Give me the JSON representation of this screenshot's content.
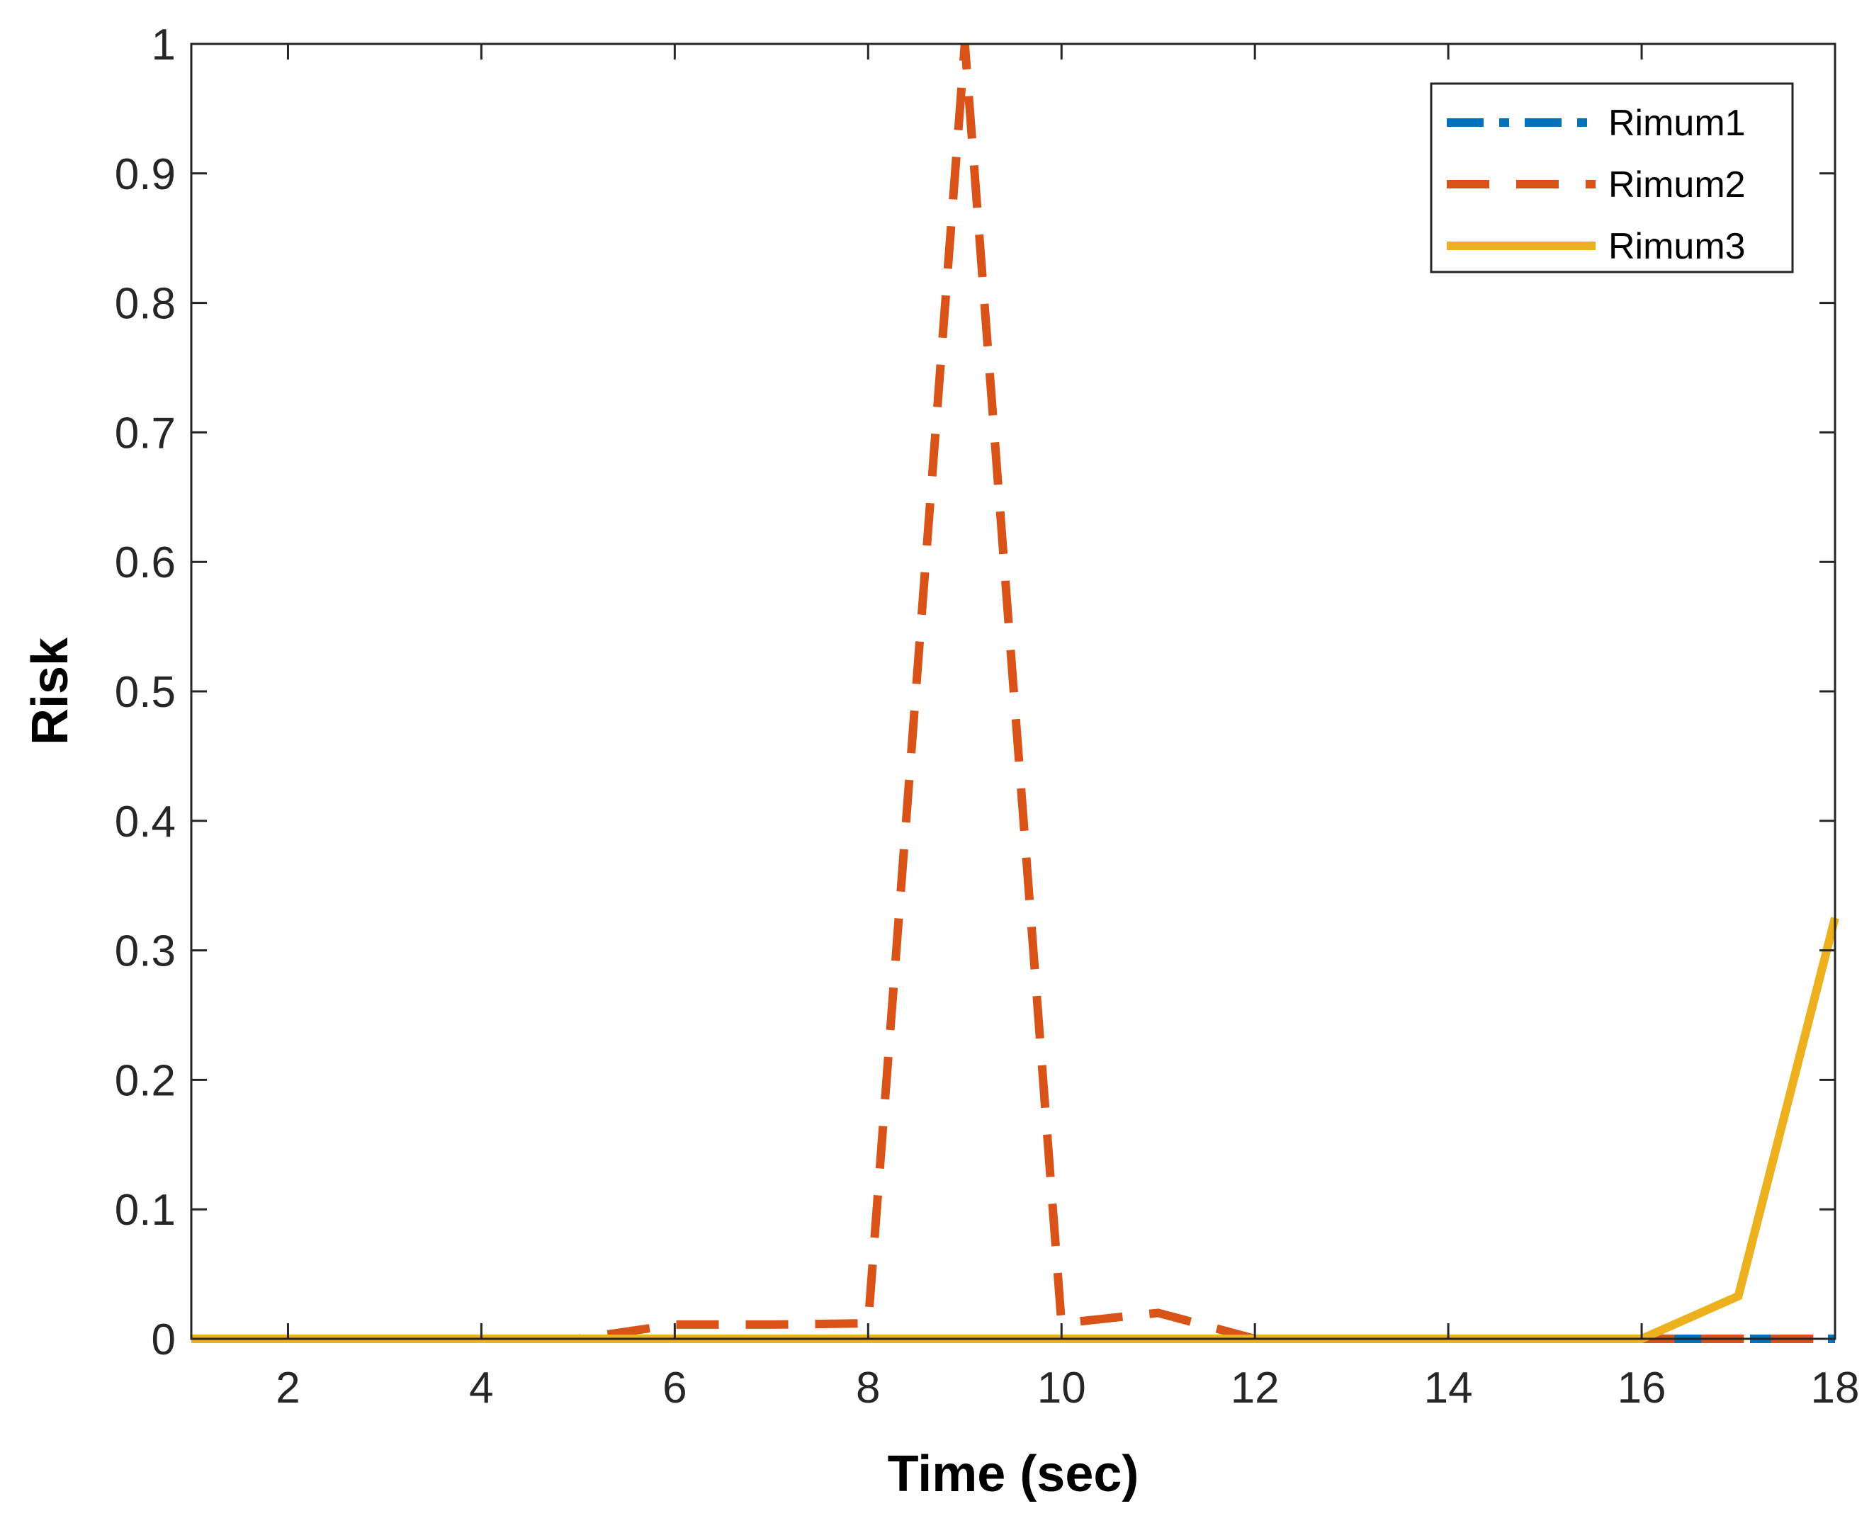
{
  "chart_data": {
    "type": "line",
    "title": "",
    "xlabel": "Time (sec)",
    "ylabel": "Risk",
    "xlim": [
      1,
      18
    ],
    "ylim": [
      0,
      1
    ],
    "xticks": [
      2,
      4,
      6,
      8,
      10,
      12,
      14,
      16,
      18
    ],
    "xtick_labels": [
      "2",
      "4",
      "6",
      "8",
      "10",
      "12",
      "14",
      "16",
      "18"
    ],
    "yticks": [
      0,
      0.1,
      0.2,
      0.3,
      0.4,
      0.5,
      0.6,
      0.7,
      0.8,
      0.9,
      1
    ],
    "ytick_labels": [
      "0",
      "0.1",
      "0.2",
      "0.3",
      "0.4",
      "0.5",
      "0.6",
      "0.7",
      "0.8",
      "0.9",
      "1"
    ],
    "grid": false,
    "legend_position": "top-right",
    "x": [
      1,
      2,
      3,
      4,
      5,
      6,
      7,
      8,
      9,
      10,
      11,
      12,
      13,
      14,
      15,
      16,
      17,
      18
    ],
    "series": [
      {
        "name": "Rimum1",
        "color": "#0072BD",
        "style": "dash-dot",
        "values": [
          0,
          0,
          0,
          0,
          0,
          0,
          0,
          0,
          0,
          0,
          0,
          0,
          0,
          0,
          0,
          0,
          0,
          0
        ]
      },
      {
        "name": "Rimum2",
        "color": "#D95319",
        "style": "dashed",
        "values": [
          0,
          0,
          0,
          0,
          0,
          0.011,
          0.011,
          0.012,
          1.0,
          0.012,
          0.02,
          0,
          0,
          0,
          0,
          0,
          0,
          0
        ]
      },
      {
        "name": "Rimum3",
        "color": "#EDB120",
        "style": "solid",
        "values": [
          0,
          0,
          0,
          0,
          0,
          0,
          0,
          0,
          0,
          0,
          0,
          0,
          0,
          0,
          0,
          0,
          0.033,
          0.325
        ]
      }
    ]
  }
}
